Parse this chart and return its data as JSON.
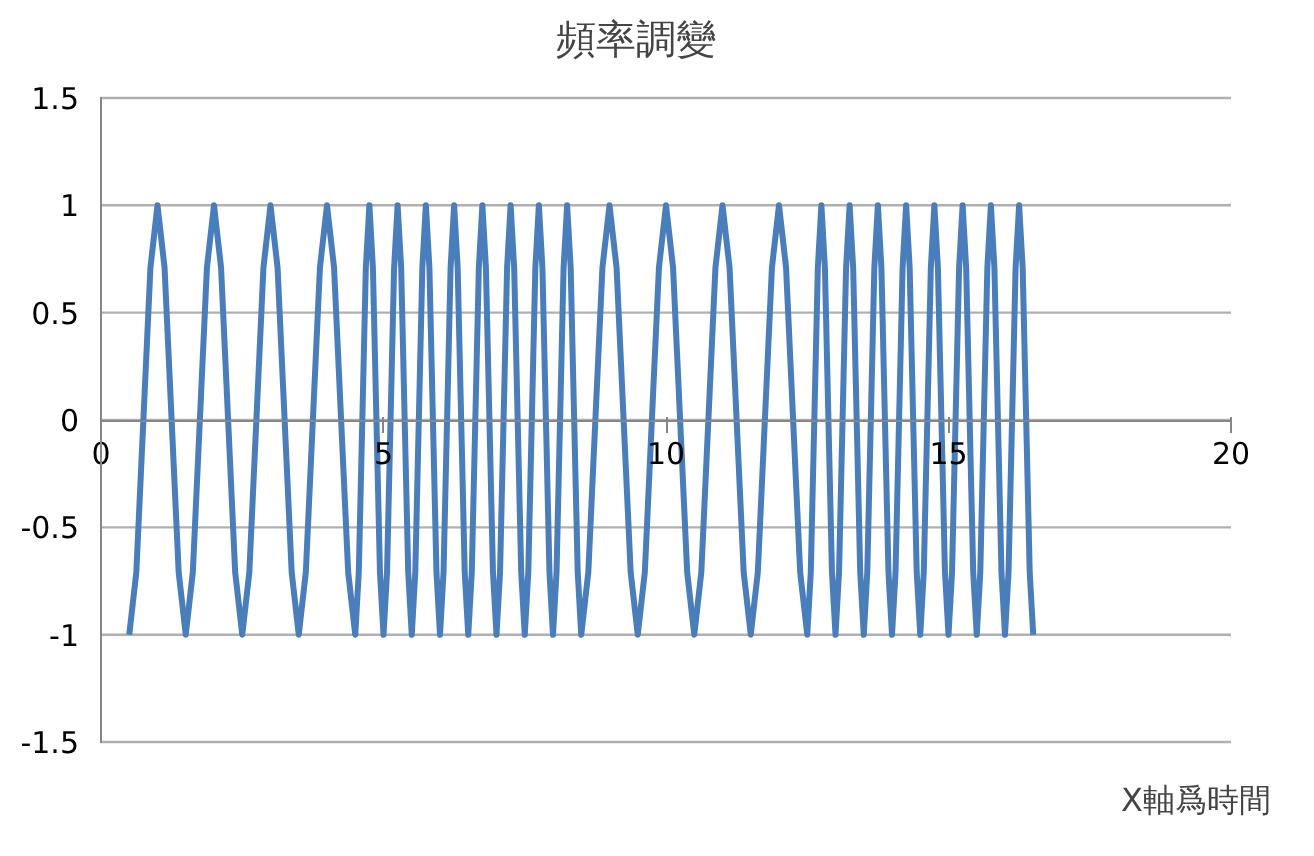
{
  "chart_data": {
    "type": "line",
    "title": "頻率調變",
    "xlabel": "X軸爲時間",
    "x": [
      0.5,
      0.625,
      0.875,
      1,
      1.125,
      1.375,
      1.5,
      1.625,
      1.875,
      2,
      2.125,
      2.375,
      2.5,
      2.625,
      2.875,
      3,
      3.125,
      3.375,
      3.5,
      3.625,
      3.875,
      4,
      4.125,
      4.375,
      4.5,
      4.5625,
      4.6875,
      4.75,
      4.8125,
      4.9375,
      5,
      5.0625,
      5.1875,
      5.25,
      5.3125,
      5.4375,
      5.5,
      5.5625,
      5.6875,
      5.75,
      5.8125,
      5.9375,
      6,
      6.0625,
      6.1875,
      6.25,
      6.3125,
      6.4375,
      6.5,
      6.5625,
      6.6875,
      6.75,
      6.8125,
      6.9375,
      7,
      7.0625,
      7.1875,
      7.25,
      7.3125,
      7.4375,
      7.5,
      7.5625,
      7.6875,
      7.75,
      7.8125,
      7.9375,
      8,
      8.0625,
      8.1875,
      8.25,
      8.3125,
      8.4375,
      8.5,
      8.625,
      8.875,
      9,
      9.125,
      9.375,
      9.5,
      9.625,
      9.875,
      10,
      10.125,
      10.375,
      10.5,
      10.625,
      10.875,
      11,
      11.125,
      11.375,
      11.5,
      11.625,
      11.875,
      12,
      12.125,
      12.375,
      12.5,
      12.5625,
      12.6875,
      12.75,
      12.8125,
      12.9375,
      13,
      13.0625,
      13.1875,
      13.25,
      13.3125,
      13.4375,
      13.5,
      13.5625,
      13.6875,
      13.75,
      13.8125,
      13.9375,
      14,
      14.0625,
      14.1875,
      14.25,
      14.3125,
      14.4375,
      14.5,
      14.5625,
      14.6875,
      14.75,
      14.8125,
      14.9375,
      15,
      15.0625,
      15.1875,
      15.25,
      15.3125,
      15.4375,
      15.5,
      15.5625,
      15.6875,
      15.75,
      15.8125,
      15.9375,
      16,
      16.0625,
      16.1875,
      16.25,
      16.3125,
      16.4375,
      16.5
    ],
    "series": [
      {
        "color": "#4a7ebb",
        "values": [
          -1,
          -0.71,
          0.71,
          1,
          0.71,
          -0.71,
          -1,
          -0.71,
          0.71,
          1,
          0.71,
          -0.71,
          -1,
          -0.71,
          0.71,
          1,
          0.71,
          -0.71,
          -1,
          -0.71,
          0.71,
          1,
          0.71,
          -0.71,
          -1,
          -0.71,
          0.71,
          1,
          0.71,
          -0.71,
          -1,
          -0.71,
          0.71,
          1,
          0.71,
          -0.71,
          -1,
          -0.71,
          0.71,
          1,
          0.71,
          -0.71,
          -1,
          -0.71,
          0.71,
          1,
          0.71,
          -0.71,
          -1,
          -0.71,
          0.71,
          1,
          0.71,
          -0.71,
          -1,
          -0.71,
          0.71,
          1,
          0.71,
          -0.71,
          -1,
          -0.71,
          0.71,
          1,
          0.71,
          -0.71,
          -1,
          -0.71,
          0.71,
          1,
          0.71,
          -0.71,
          -1,
          -0.71,
          0.71,
          1,
          0.71,
          -0.71,
          -1,
          -0.71,
          0.71,
          1,
          0.71,
          -0.71,
          -1,
          -0.71,
          0.71,
          1,
          0.71,
          -0.71,
          -1,
          -0.71,
          0.71,
          1,
          0.71,
          -0.71,
          -1,
          -0.71,
          0.71,
          1,
          0.71,
          -0.71,
          -1,
          -0.71,
          0.71,
          1,
          0.71,
          -0.71,
          -1,
          -0.71,
          0.71,
          1,
          0.71,
          -0.71,
          -1,
          -0.71,
          0.71,
          1,
          0.71,
          -0.71,
          -1,
          -0.71,
          0.71,
          1,
          0.71,
          -0.71,
          -1,
          -0.71,
          0.71,
          1,
          0.71,
          -0.71,
          -1,
          -0.71,
          0.71,
          1,
          0.71,
          -0.71,
          -1,
          -0.71,
          0.71,
          1,
          0.71,
          -0.71,
          -1
        ]
      }
    ],
    "xlim": [
      0,
      20
    ],
    "ylim": [
      -1.5,
      1.5
    ],
    "xticks": [
      0,
      5,
      10,
      15,
      20
    ],
    "yticks": [
      -1.5,
      -1,
      -0.5,
      0,
      0.5,
      1,
      1.5
    ],
    "grid": "y"
  }
}
